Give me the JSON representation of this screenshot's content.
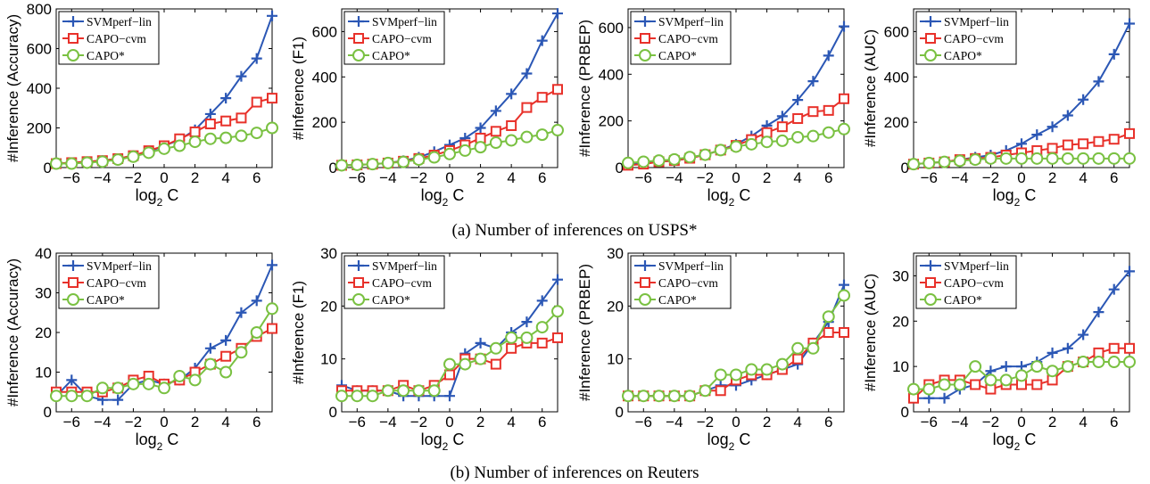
{
  "legend_entries": [
    "SVMperf−lin",
    "CAPO−cvm",
    "CAPO*"
  ],
  "series_colors": {
    "svm": "#2b57b5",
    "cvm": "#e8312a",
    "capo": "#7ac142"
  },
  "captions": [
    "(a) Number of inferences on USPS*",
    "(b) Number of inferences on Reuters"
  ],
  "chart_data": [
    {
      "type": "line",
      "row": "a",
      "ylabel": "#Inference (Accuracy)",
      "xlabel": "log2 C",
      "xlim": [
        -7,
        7
      ],
      "ylim": [
        0,
        800
      ],
      "xticks": [
        -6,
        -4,
        -2,
        0,
        2,
        4,
        6
      ],
      "yticks": [
        0,
        200,
        400,
        600,
        800
      ],
      "x": [
        -7,
        -6,
        -5,
        -4,
        -3,
        -2,
        -1,
        0,
        1,
        2,
        3,
        4,
        5,
        6,
        7
      ],
      "series": [
        {
          "name": "SVMperf−lin",
          "values": [
            20,
            25,
            30,
            35,
            45,
            60,
            80,
            110,
            140,
            190,
            270,
            350,
            460,
            550,
            765
          ]
        },
        {
          "name": "CAPO−cvm",
          "values": [
            20,
            25,
            30,
            35,
            45,
            60,
            85,
            110,
            145,
            180,
            220,
            235,
            250,
            330,
            350
          ]
        },
        {
          "name": "CAPO*",
          "values": [
            20,
            20,
            25,
            30,
            40,
            55,
            75,
            95,
            110,
            130,
            145,
            150,
            160,
            175,
            200
          ]
        }
      ]
    },
    {
      "type": "line",
      "row": "a",
      "ylabel": "#Inference (F1)",
      "xlabel": "log2 C",
      "xlim": [
        -7,
        7
      ],
      "ylim": [
        0,
        700
      ],
      "xticks": [
        -6,
        -4,
        -2,
        0,
        2,
        4,
        6
      ],
      "yticks": [
        0,
        200,
        400,
        600
      ],
      "x": [
        -7,
        -6,
        -5,
        -4,
        -3,
        -2,
        -1,
        0,
        1,
        2,
        3,
        4,
        5,
        6,
        7
      ],
      "series": [
        {
          "name": "SVMperf−lin",
          "values": [
            10,
            12,
            15,
            20,
            30,
            45,
            70,
            100,
            130,
            175,
            250,
            325,
            415,
            560,
            680
          ]
        },
        {
          "name": "CAPO−cvm",
          "values": [
            10,
            12,
            15,
            20,
            28,
            40,
            55,
            75,
            100,
            130,
            160,
            185,
            265,
            310,
            345
          ]
        },
        {
          "name": "CAPO*",
          "values": [
            10,
            12,
            15,
            20,
            25,
            35,
            45,
            60,
            75,
            90,
            110,
            120,
            135,
            145,
            165
          ]
        }
      ]
    },
    {
      "type": "line",
      "row": "a",
      "ylabel": "#Inference (PRBEP)",
      "xlabel": "log2 C",
      "xlim": [
        -7,
        7
      ],
      "ylim": [
        0,
        680
      ],
      "xticks": [
        -6,
        -4,
        -2,
        0,
        2,
        4,
        6
      ],
      "yticks": [
        0,
        200,
        400,
        600
      ],
      "x": [
        -7,
        -6,
        -5,
        -4,
        -3,
        -2,
        -1,
        0,
        1,
        2,
        3,
        4,
        5,
        6,
        7
      ],
      "series": [
        {
          "name": "SVMperf−lin",
          "values": [
            15,
            20,
            25,
            30,
            40,
            55,
            75,
            100,
            135,
            180,
            220,
            290,
            370,
            480,
            605
          ]
        },
        {
          "name": "CAPO−cvm",
          "values": [
            10,
            15,
            25,
            30,
            40,
            55,
            75,
            95,
            120,
            150,
            175,
            210,
            240,
            245,
            295
          ]
        },
        {
          "name": "CAPO*",
          "values": [
            20,
            25,
            30,
            35,
            45,
            55,
            75,
            90,
            100,
            110,
            115,
            130,
            135,
            150,
            165
          ]
        }
      ]
    },
    {
      "type": "line",
      "row": "a",
      "ylabel": "#Inference (AUC)",
      "xlabel": "log2 C",
      "xlim": [
        -7,
        7
      ],
      "ylim": [
        0,
        700
      ],
      "xticks": [
        -6,
        -4,
        -2,
        0,
        2,
        4,
        6
      ],
      "yticks": [
        0,
        200,
        400,
        600
      ],
      "x": [
        -7,
        -6,
        -5,
        -4,
        -3,
        -2,
        -1,
        0,
        1,
        2,
        3,
        4,
        5,
        6,
        7
      ],
      "series": [
        {
          "name": "SVMperf−lin",
          "values": [
            15,
            20,
            25,
            35,
            45,
            55,
            75,
            105,
            145,
            180,
            230,
            300,
            380,
            500,
            635
          ]
        },
        {
          "name": "CAPO−cvm",
          "values": [
            15,
            20,
            25,
            35,
            40,
            45,
            55,
            65,
            75,
            85,
            100,
            105,
            115,
            125,
            150
          ]
        },
        {
          "name": "CAPO*",
          "values": [
            15,
            20,
            25,
            30,
            35,
            40,
            40,
            40,
            40,
            40,
            40,
            40,
            40,
            40,
            40
          ]
        }
      ]
    },
    {
      "type": "line",
      "row": "b",
      "ylabel": "#Inference (Accuracy)",
      "xlabel": "log2 C",
      "xlim": [
        -7,
        7
      ],
      "ylim": [
        0,
        40
      ],
      "xticks": [
        -6,
        -4,
        -2,
        0,
        2,
        4,
        6
      ],
      "yticks": [
        0,
        10,
        20,
        30,
        40
      ],
      "x": [
        -7,
        -6,
        -5,
        -4,
        -3,
        -2,
        -1,
        0,
        1,
        2,
        3,
        4,
        5,
        6,
        7
      ],
      "series": [
        {
          "name": "SVMperf−lin",
          "values": [
            4,
            8,
            4,
            3,
            3,
            7,
            8,
            7,
            8,
            11,
            16,
            18,
            25,
            28,
            37
          ]
        },
        {
          "name": "CAPO−cvm",
          "values": [
            5,
            5,
            5,
            5,
            6,
            8,
            9,
            7,
            8,
            10,
            12,
            14,
            16,
            19,
            21
          ]
        },
        {
          "name": "CAPO*",
          "values": [
            4,
            4,
            4,
            6,
            6,
            7,
            7,
            6,
            9,
            8,
            12,
            10,
            15,
            20,
            26
          ]
        }
      ]
    },
    {
      "type": "line",
      "row": "b",
      "ylabel": "#Inference (F1)",
      "xlabel": "log2 C",
      "xlim": [
        -7,
        7
      ],
      "ylim": [
        0,
        30
      ],
      "xticks": [
        -6,
        -4,
        -2,
        0,
        2,
        4,
        6
      ],
      "yticks": [
        0,
        10,
        20,
        30
      ],
      "x": [
        -7,
        -6,
        -5,
        -4,
        -3,
        -2,
        -1,
        0,
        1,
        2,
        3,
        4,
        5,
        6,
        7
      ],
      "series": [
        {
          "name": "SVMperf−lin",
          "values": [
            5,
            4,
            4,
            4,
            3,
            3,
            3,
            3,
            11,
            13,
            12,
            15,
            17,
            21,
            25
          ]
        },
        {
          "name": "CAPO−cvm",
          "values": [
            4,
            4,
            4,
            4,
            5,
            4,
            5,
            7,
            10,
            10,
            9,
            12,
            13,
            13,
            14
          ]
        },
        {
          "name": "CAPO*",
          "values": [
            3,
            3,
            3,
            4,
            4,
            4,
            4,
            9,
            9,
            10,
            12,
            14,
            14,
            16,
            19
          ]
        }
      ]
    },
    {
      "type": "line",
      "row": "b",
      "ylabel": "#Inference (PRBEP)",
      "xlabel": "log2 C",
      "xlim": [
        -7,
        7
      ],
      "ylim": [
        0,
        30
      ],
      "xticks": [
        -6,
        -4,
        -2,
        0,
        2,
        4,
        6
      ],
      "yticks": [
        0,
        10,
        20,
        30
      ],
      "x": [
        -7,
        -6,
        -5,
        -4,
        -3,
        -2,
        -1,
        0,
        1,
        2,
        3,
        4,
        5,
        6,
        7
      ],
      "series": [
        {
          "name": "SVMperf−lin",
          "values": [
            3,
            3,
            3,
            3,
            3,
            4,
            5,
            5,
            6,
            7,
            8,
            9,
            13,
            17,
            24
          ]
        },
        {
          "name": "CAPO−cvm",
          "values": [
            3,
            3,
            3,
            3,
            3,
            4,
            4,
            6,
            7,
            7,
            8,
            10,
            13,
            15,
            15
          ]
        },
        {
          "name": "CAPO*",
          "values": [
            3,
            3,
            3,
            3,
            3,
            4,
            7,
            7,
            8,
            8,
            9,
            12,
            12,
            18,
            22
          ]
        }
      ]
    },
    {
      "type": "line",
      "row": "b",
      "ylabel": "#Inference (AUC)",
      "xlabel": "log2 C",
      "xlim": [
        -7,
        7
      ],
      "ylim": [
        0,
        35
      ],
      "xticks": [
        -6,
        -4,
        -2,
        0,
        2,
        4,
        6
      ],
      "yticks": [
        0,
        10,
        20,
        30
      ],
      "x": [
        -7,
        -6,
        -5,
        -4,
        -3,
        -2,
        -1,
        0,
        1,
        2,
        3,
        4,
        5,
        6,
        7
      ],
      "series": [
        {
          "name": "SVMperf−lin",
          "values": [
            3,
            3,
            3,
            5,
            6,
            9,
            10,
            10,
            11,
            13,
            14,
            17,
            22,
            27,
            31
          ]
        },
        {
          "name": "CAPO−cvm",
          "values": [
            3,
            6,
            7,
            7,
            6,
            5,
            6,
            6,
            6,
            7,
            10,
            11,
            13,
            14,
            14
          ]
        },
        {
          "name": "CAPO*",
          "values": [
            5,
            5,
            6,
            6,
            10,
            7,
            7,
            8,
            10,
            9,
            10,
            11,
            11,
            11,
            11
          ]
        }
      ]
    }
  ]
}
